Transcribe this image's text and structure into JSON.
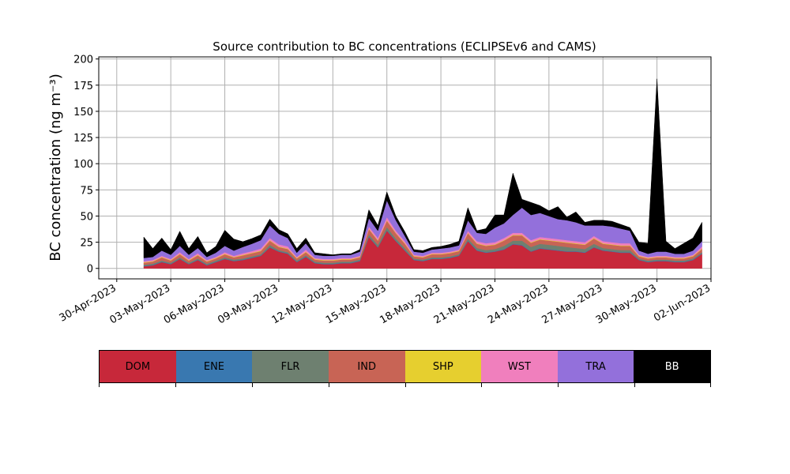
{
  "chart_data": {
    "type": "area",
    "stacked": true,
    "title": "Source contribution to BC concentrations (ECLIPSEv6 and CAMS)",
    "ylabel": "BC concentration (ng m⁻³)",
    "xlabel": "",
    "ylim": [
      -10,
      202
    ],
    "yticks": [
      0,
      25,
      50,
      75,
      100,
      125,
      150,
      175,
      200
    ],
    "xlim": [
      "2023-04-29",
      "2023-06-02"
    ],
    "xticks": [
      "30-Apr-2023",
      "03-May-2023",
      "06-May-2023",
      "09-May-2023",
      "12-May-2023",
      "15-May-2023",
      "18-May-2023",
      "21-May-2023",
      "24-May-2023",
      "27-May-2023",
      "30-May-2023",
      "02-Jun-2023"
    ],
    "grid": true,
    "legend_placement": "bottom",
    "x": [
      "2023-05-01T12",
      "2023-05-02T00",
      "2023-05-02T12",
      "2023-05-03T00",
      "2023-05-03T12",
      "2023-05-04T00",
      "2023-05-04T12",
      "2023-05-05T00",
      "2023-05-05T12",
      "2023-05-06T00",
      "2023-05-06T12",
      "2023-05-07T00",
      "2023-05-07T12",
      "2023-05-08T00",
      "2023-05-08T12",
      "2023-05-09T00",
      "2023-05-09T12",
      "2023-05-10T00",
      "2023-05-10T12",
      "2023-05-11T00",
      "2023-05-11T12",
      "2023-05-12T00",
      "2023-05-12T12",
      "2023-05-13T00",
      "2023-05-13T12",
      "2023-05-14T00",
      "2023-05-14T12",
      "2023-05-15T00",
      "2023-05-15T12",
      "2023-05-16T00",
      "2023-05-16T12",
      "2023-05-17T00",
      "2023-05-17T12",
      "2023-05-18T00",
      "2023-05-18T12",
      "2023-05-19T00",
      "2023-05-19T12",
      "2023-05-20T00",
      "2023-05-20T12",
      "2023-05-21T00",
      "2023-05-21T12",
      "2023-05-22T00",
      "2023-05-22T12",
      "2023-05-23T00",
      "2023-05-23T12",
      "2023-05-24T00",
      "2023-05-24T12",
      "2023-05-25T00",
      "2023-05-25T12",
      "2023-05-26T00",
      "2023-05-26T12",
      "2023-05-27T00",
      "2023-05-27T12",
      "2023-05-28T00",
      "2023-05-28T12",
      "2023-05-29T00",
      "2023-05-29T12",
      "2023-05-30T00",
      "2023-05-30T12",
      "2023-05-31T00",
      "2023-05-31T12",
      "2023-06-01T00",
      "2023-06-01T12"
    ],
    "series": [
      {
        "name": "DOM",
        "color": "#c7283a",
        "values": [
          2,
          3,
          6,
          4,
          9,
          4,
          8,
          3,
          6,
          9,
          7,
          8,
          10,
          12,
          20,
          16,
          14,
          6,
          11,
          5,
          4,
          4,
          5,
          5,
          7,
          30,
          20,
          36,
          26,
          17,
          8,
          7,
          9,
          9,
          10,
          12,
          26,
          17,
          15,
          16,
          18,
          23,
          22,
          16,
          19,
          18,
          17,
          16,
          16,
          15,
          20,
          17,
          16,
          15,
          15,
          8,
          6,
          7,
          7,
          6,
          6,
          8,
          14
        ]
      },
      {
        "name": "ENE",
        "color": "#3978b0",
        "values": [
          0.5,
          0.5,
          0.5,
          0.5,
          0.5,
          0.5,
          0.5,
          0.5,
          0.5,
          0.5,
          0.5,
          0.5,
          0.5,
          0.5,
          0.5,
          0.5,
          0.5,
          0.5,
          0.5,
          0.5,
          0.5,
          0.5,
          0.5,
          0.5,
          0.5,
          0.5,
          0.5,
          0.5,
          0.5,
          0.5,
          0.5,
          0.5,
          0.5,
          0.5,
          0.5,
          0.5,
          0.5,
          0.5,
          0.5,
          0.5,
          0.5,
          0.5,
          0.5,
          0.5,
          0.5,
          0.5,
          0.5,
          0.5,
          0.5,
          0.5,
          0.5,
          0.5,
          0.5,
          0.5,
          0.5,
          0.5,
          0.5,
          0.5,
          0.5,
          0.5,
          0.5,
          0.5,
          0.5
        ]
      },
      {
        "name": "FLR",
        "color": "#6e8070",
        "values": [
          1,
          1,
          1,
          1,
          1,
          1,
          1,
          1,
          1,
          1,
          1,
          1,
          1,
          1,
          2,
          1,
          1,
          1,
          1,
          1,
          1,
          1,
          1,
          1,
          1,
          2,
          2,
          3,
          2,
          2,
          1,
          1,
          1,
          1,
          1,
          1,
          2,
          2,
          2,
          2,
          3,
          3,
          4,
          4,
          4,
          4,
          4,
          4,
          3,
          3,
          3,
          2,
          2,
          2,
          2,
          1,
          1,
          1,
          1,
          1,
          1,
          1,
          1
        ]
      },
      {
        "name": "IND",
        "color": "#c86455",
        "values": [
          2,
          2,
          3,
          2,
          3,
          2,
          3,
          2,
          2,
          3,
          2,
          3,
          3,
          3,
          4,
          3,
          3,
          2,
          3,
          2,
          2,
          2,
          2,
          2,
          2,
          5,
          4,
          6,
          5,
          4,
          2,
          2,
          3,
          3,
          3,
          3,
          5,
          4,
          4,
          4,
          5,
          5,
          5,
          4,
          4,
          4,
          4,
          4,
          4,
          4,
          5,
          4,
          4,
          4,
          4,
          2,
          2,
          2,
          2,
          2,
          2,
          2,
          3
        ]
      },
      {
        "name": "SHP",
        "color": "#e6cf2f",
        "values": [
          0.5,
          0.5,
          0.5,
          0.5,
          0.5,
          0.5,
          0.5,
          0.5,
          0.5,
          0.5,
          0.5,
          0.5,
          0.5,
          0.5,
          0.5,
          0.5,
          0.5,
          0.5,
          0.5,
          0.5,
          0.5,
          0.5,
          0.5,
          0.5,
          0.5,
          0.5,
          0.5,
          0.5,
          0.5,
          0.5,
          0.5,
          0.5,
          0.5,
          0.5,
          0.5,
          0.5,
          0.5,
          0.5,
          0.5,
          0.5,
          0.5,
          0.5,
          0.5,
          0.5,
          0.5,
          0.5,
          0.5,
          0.5,
          0.5,
          0.5,
          0.5,
          0.5,
          0.5,
          0.5,
          0.5,
          0.5,
          0.5,
          0.5,
          0.5,
          0.5,
          0.5,
          0.5,
          0.5
        ]
      },
      {
        "name": "WST",
        "color": "#f07fbd",
        "values": [
          1,
          1,
          1,
          1,
          1.5,
          1,
          1.5,
          1,
          1,
          1.5,
          1,
          1.5,
          1.5,
          2,
          2,
          2,
          2,
          1,
          2,
          1,
          1,
          1,
          1,
          1,
          1,
          2,
          2,
          3,
          2,
          2,
          1,
          1,
          1,
          1,
          1,
          1,
          2,
          2,
          2,
          2,
          2,
          2,
          2,
          2,
          2,
          2,
          2,
          2,
          2,
          2,
          2,
          2,
          2,
          2,
          2,
          1,
          1,
          1,
          1,
          1,
          1,
          1,
          2
        ]
      },
      {
        "name": "TRA",
        "color": "#9370db",
        "values": [
          3,
          3,
          5,
          4,
          6,
          4,
          5,
          3,
          4,
          6,
          5,
          6,
          7,
          8,
          12,
          10,
          8,
          4,
          6,
          3,
          3,
          3,
          3,
          3,
          4,
          8,
          7,
          16,
          10,
          5,
          3,
          3,
          3,
          4,
          4,
          4,
          10,
          8,
          9,
          14,
          14,
          17,
          24,
          24,
          23,
          21,
          19,
          19,
          18,
          16,
          10,
          15,
          15,
          14,
          12,
          4,
          3,
          4,
          4,
          3,
          3,
          4,
          5
        ]
      },
      {
        "name": "BB",
        "color": "#000000",
        "values": [
          20,
          8,
          12,
          5,
          14,
          6,
          11,
          4,
          6,
          15,
          11,
          5,
          5,
          5,
          6,
          4,
          4,
          4,
          5,
          2,
          2,
          1,
          1,
          1,
          2,
          8,
          5,
          8,
          4,
          4,
          2,
          2,
          2,
          2,
          3,
          4,
          12,
          2,
          5,
          12,
          8,
          40,
          8,
          12,
          7,
          5,
          12,
          3,
          10,
          3,
          5,
          5,
          5,
          4,
          3,
          8,
          10,
          165,
          10,
          5,
          10,
          12,
          18
        ]
      }
    ]
  },
  "legend": {
    "items": [
      {
        "label": "DOM",
        "color": "#c7283a",
        "text_color": "#000000"
      },
      {
        "label": "ENE",
        "color": "#3978b0",
        "text_color": "#000000"
      },
      {
        "label": "FLR",
        "color": "#6e8070",
        "text_color": "#000000"
      },
      {
        "label": "IND",
        "color": "#c86455",
        "text_color": "#000000"
      },
      {
        "label": "SHP",
        "color": "#e6cf2f",
        "text_color": "#000000"
      },
      {
        "label": "WST",
        "color": "#f07fbd",
        "text_color": "#000000"
      },
      {
        "label": "TRA",
        "color": "#9370db",
        "text_color": "#000000"
      },
      {
        "label": "BB",
        "color": "#000000",
        "text_color": "#ffffff"
      }
    ]
  }
}
